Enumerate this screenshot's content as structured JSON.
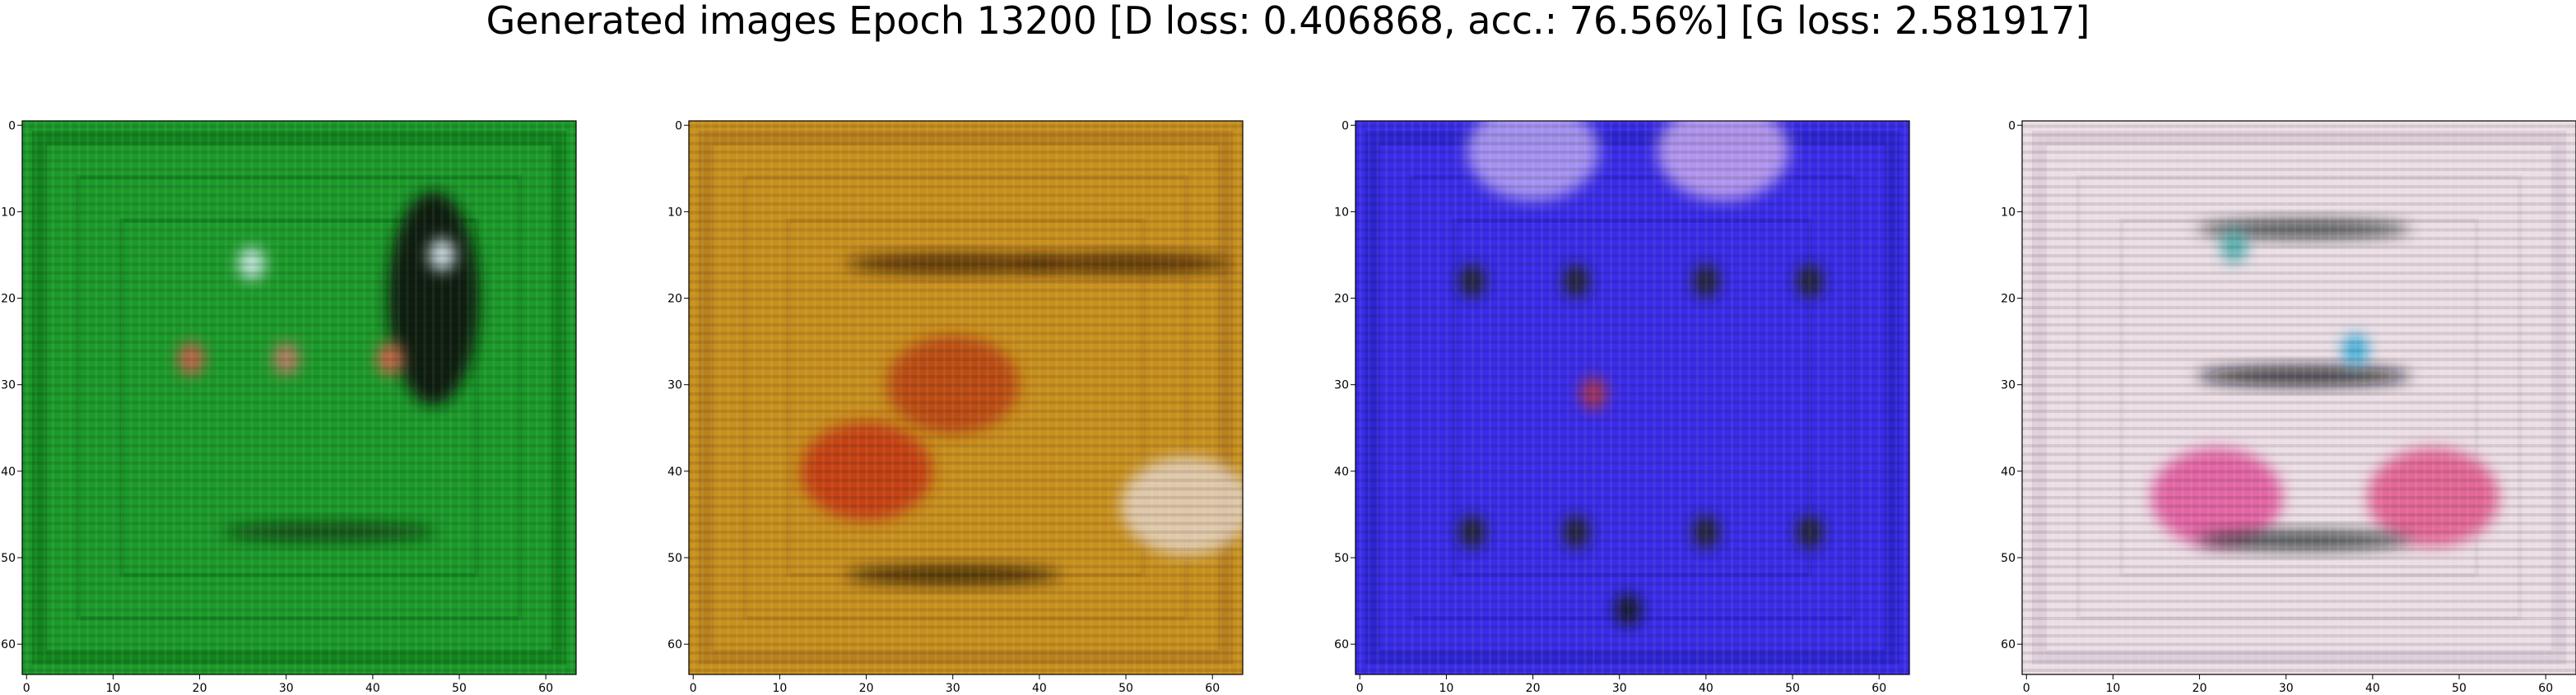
{
  "figure": {
    "title": "Generated images Epoch 13200 [D loss: 0.406868, acc.: 76.56%] [G loss: 2.581917]"
  },
  "chart_data": [
    {
      "type": "heatmap",
      "title": "",
      "xlabel": "",
      "ylabel": "",
      "xlim": [
        -0.5,
        63.5
      ],
      "ylim": [
        63.5,
        -0.5
      ],
      "xticks": [
        "0",
        "10",
        "20",
        "30",
        "40",
        "50",
        "60"
      ],
      "yticks": [
        "0",
        "10",
        "20",
        "30",
        "40",
        "50",
        "60"
      ],
      "grid": false,
      "dominant_color": "#1c9a2a",
      "frame_color": "#0e7a1a",
      "features": [
        {
          "kind": "dark-blob",
          "x": 47,
          "y": 20,
          "color": "#081408"
        },
        {
          "kind": "bright-spot",
          "x": 48,
          "y": 15,
          "color": "#e8f4ff"
        },
        {
          "kind": "bright-spot",
          "x": 26,
          "y": 16,
          "color": "#d8f0f4"
        },
        {
          "kind": "red-spot",
          "x": 19,
          "y": 27,
          "color": "#d85a50"
        },
        {
          "kind": "red-spot",
          "x": 30,
          "y": 27,
          "color": "#c87868"
        },
        {
          "kind": "red-spot",
          "x": 42,
          "y": 27,
          "color": "#e06050"
        },
        {
          "kind": "dark-band",
          "x": 35,
          "y": 47,
          "color": "#0c3a10"
        }
      ]
    },
    {
      "type": "heatmap",
      "title": "",
      "xlabel": "",
      "ylabel": "",
      "xlim": [
        -0.5,
        63.5
      ],
      "ylim": [
        63.5,
        -0.5
      ],
      "xticks": [
        "0",
        "10",
        "20",
        "30",
        "40",
        "50",
        "60"
      ],
      "yticks": [
        "0",
        "10",
        "20",
        "30",
        "40",
        "50",
        "60"
      ],
      "grid": false,
      "dominant_color": "#c8901e",
      "frame_color": "#b27a1c",
      "features": [
        {
          "kind": "red-region",
          "x": 20,
          "y": 40,
          "color": "#c42a10"
        },
        {
          "kind": "red-region",
          "x": 30,
          "y": 30,
          "color": "#b83414"
        },
        {
          "kind": "pale-region",
          "x": 57,
          "y": 44,
          "color": "#e8dcd8"
        },
        {
          "kind": "dark-band",
          "x": 30,
          "y": 16,
          "color": "#3a1c08"
        },
        {
          "kind": "dark-band",
          "x": 50,
          "y": 16,
          "color": "#3a1c08"
        },
        {
          "kind": "dark-band",
          "x": 30,
          "y": 52,
          "color": "#2c1a08"
        }
      ]
    },
    {
      "type": "heatmap",
      "title": "",
      "xlabel": "",
      "ylabel": "",
      "xlim": [
        -0.5,
        63.5
      ],
      "ylim": [
        63.5,
        -0.5
      ],
      "xticks": [
        "0",
        "10",
        "20",
        "30",
        "40",
        "50",
        "60"
      ],
      "yticks": [
        "0",
        "10",
        "20",
        "30",
        "40",
        "50",
        "60"
      ],
      "grid": false,
      "dominant_color": "#3a2ce8",
      "frame_color": "#2a22c8",
      "features": [
        {
          "kind": "light-region",
          "x": 20,
          "y": 3,
          "color": "#c8b4f4"
        },
        {
          "kind": "light-region",
          "x": 42,
          "y": 3,
          "color": "#d8b8f0"
        },
        {
          "kind": "dark-spot",
          "x": 13,
          "y": 18,
          "color": "#1c2414"
        },
        {
          "kind": "dark-spot",
          "x": 25,
          "y": 18,
          "color": "#1c2414"
        },
        {
          "kind": "dark-spot",
          "x": 40,
          "y": 18,
          "color": "#1c2414"
        },
        {
          "kind": "dark-spot",
          "x": 52,
          "y": 18,
          "color": "#1c2414"
        },
        {
          "kind": "dark-spot",
          "x": 13,
          "y": 47,
          "color": "#1c2414"
        },
        {
          "kind": "dark-spot",
          "x": 25,
          "y": 47,
          "color": "#1c2414"
        },
        {
          "kind": "dark-spot",
          "x": 40,
          "y": 47,
          "color": "#1c2414"
        },
        {
          "kind": "dark-spot",
          "x": 52,
          "y": 47,
          "color": "#1c2414"
        },
        {
          "kind": "red-spot",
          "x": 27,
          "y": 31,
          "color": "#b03440"
        },
        {
          "kind": "dark-spot",
          "x": 31,
          "y": 56,
          "color": "#101410"
        }
      ]
    },
    {
      "type": "heatmap",
      "title": "",
      "xlabel": "",
      "ylabel": "",
      "xlim": [
        -0.5,
        63.5
      ],
      "ylim": [
        63.5,
        -0.5
      ],
      "xticks": [
        "0",
        "10",
        "20",
        "30",
        "40",
        "50",
        "60"
      ],
      "yticks": [
        "0",
        "10",
        "20",
        "30",
        "40",
        "50",
        "60"
      ],
      "grid": false,
      "dominant_color": "#ecdfe6",
      "frame_color": "#d8c8d4",
      "features": [
        {
          "kind": "dark-band",
          "x": 32,
          "y": 12,
          "color": "#303838"
        },
        {
          "kind": "dark-band",
          "x": 32,
          "y": 29,
          "color": "#141418"
        },
        {
          "kind": "magenta-region",
          "x": 22,
          "y": 43,
          "color": "#e03c90"
        },
        {
          "kind": "magenta-region",
          "x": 47,
          "y": 43,
          "color": "#e0407c"
        },
        {
          "kind": "cyan-spot",
          "x": 38,
          "y": 26,
          "color": "#2ca8d8"
        },
        {
          "kind": "cyan-spot",
          "x": 24,
          "y": 14,
          "color": "#40a8a8"
        },
        {
          "kind": "dark-band",
          "x": 32,
          "y": 48,
          "color": "#283030"
        }
      ]
    }
  ]
}
